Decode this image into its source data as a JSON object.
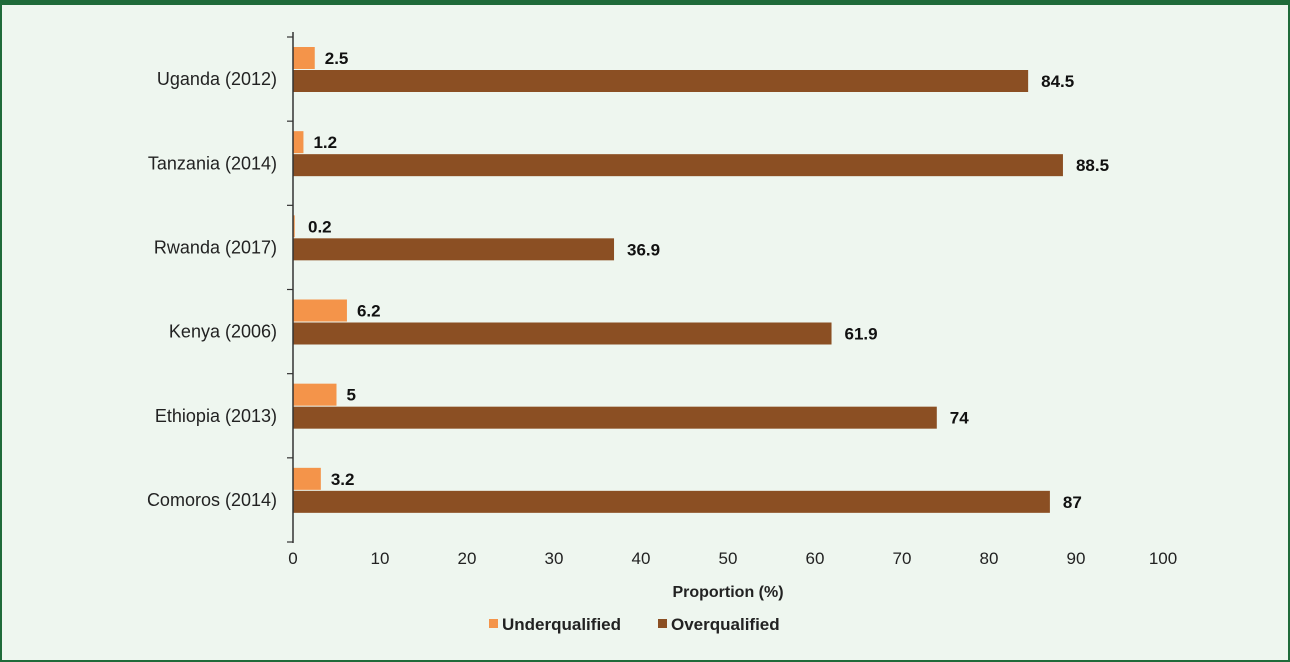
{
  "chart_data": {
    "type": "bar",
    "orientation": "horizontal",
    "categories": [
      "Uganda (2012)",
      "Tanzania (2014)",
      "Rwanda (2017)",
      "Kenya (2006)",
      "Ethiopia (2013)",
      "Comoros (2014)"
    ],
    "series": [
      {
        "name": "Underqualified",
        "color": "#f4944a",
        "values": [
          2.5,
          1.2,
          0.2,
          6.2,
          5,
          3.2
        ],
        "labels": [
          "2.5",
          "1.2",
          "0.2",
          "6.2",
          "5",
          "3.2"
        ]
      },
      {
        "name": "Overqualified",
        "color": "#8b4f23",
        "values": [
          84.5,
          88.5,
          36.9,
          61.9,
          74,
          87
        ],
        "labels": [
          "84.5",
          "88.5",
          "36.9",
          "61.9",
          "74",
          "87"
        ]
      }
    ],
    "xlabel": "Proportion (%)",
    "ylabel": "",
    "title": "",
    "xlim": [
      0,
      100
    ],
    "xticks": [
      "0",
      "10",
      "20",
      "30",
      "40",
      "50",
      "60",
      "70",
      "80",
      "90",
      "100"
    ],
    "grid": false,
    "legend_position": "bottom-center"
  }
}
